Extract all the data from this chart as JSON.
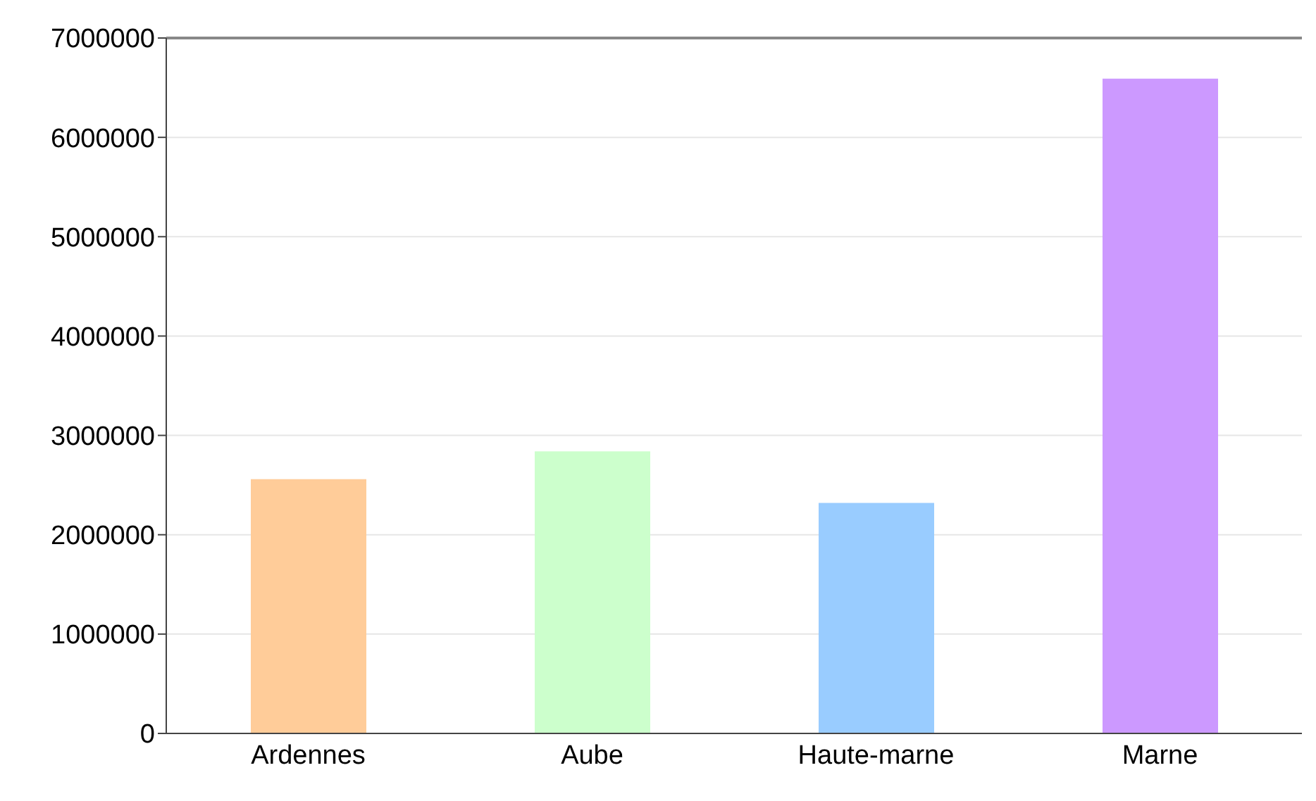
{
  "chart_data": {
    "type": "bar",
    "categories": [
      "Ardennes",
      "Aube",
      "Haute-marne",
      "Marne"
    ],
    "values": [
      2560000,
      2840000,
      2320000,
      6590000
    ],
    "colors": [
      "#ffcc99",
      "#ccffcc",
      "#99ccff",
      "#cc99ff"
    ],
    "ylim": [
      0,
      7000000
    ],
    "yticks": [
      0,
      1000000,
      2000000,
      3000000,
      4000000,
      5000000,
      6000000,
      7000000
    ],
    "grid": "y",
    "legend": false
  }
}
